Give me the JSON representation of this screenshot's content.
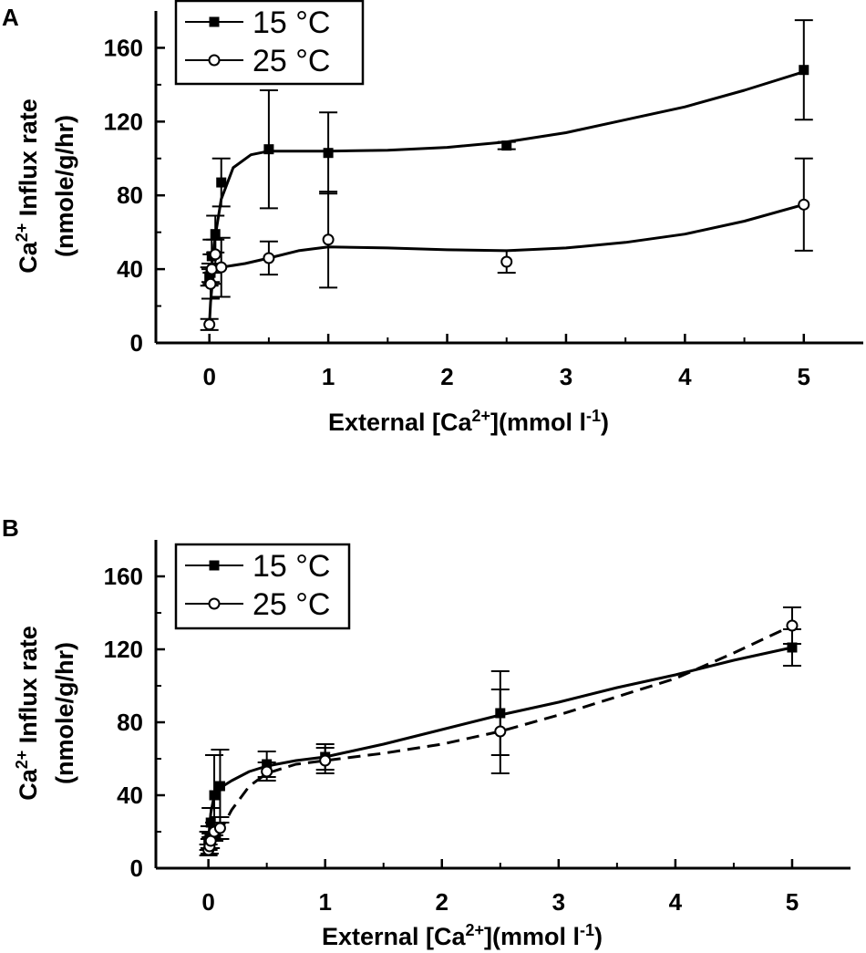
{
  "chart_data": [
    {
      "panel_label": "A",
      "type": "line",
      "xlabel_main": "External [Ca",
      "xlabel_sup": "2+",
      "xlabel_mid": "](mmol l",
      "xlabel_sup2": "-1",
      "xlabel_end": ")",
      "ylabel_line1_main": "Ca",
      "ylabel_line1_sup": "2+",
      "ylabel_line1_end": " Influx rate",
      "ylabel_line2": "(nmole/g/hr)",
      "xlim": [
        -0.45,
        5.5
      ],
      "ylim": [
        0,
        180
      ],
      "xticks": [
        0,
        1,
        2,
        3,
        4,
        5
      ],
      "yticks": [
        0,
        40,
        80,
        120,
        160
      ],
      "legend": [
        {
          "label": "15 °C",
          "marker": "square-filled"
        },
        {
          "label": "25 °C",
          "marker": "circle-open"
        }
      ],
      "series": [
        {
          "name": "15 °C",
          "marker": "square-filled",
          "line": "solid",
          "points": [
            {
              "x": 0.0,
              "y": 36,
              "err": 5
            },
            {
              "x": 0.01,
              "y": 38,
              "err": 5
            },
            {
              "x": 0.02,
              "y": 47,
              "err": 9
            },
            {
              "x": 0.05,
              "y": 59,
              "err": 10
            },
            {
              "x": 0.1,
              "y": 87,
              "err": 13
            },
            {
              "x": 0.5,
              "y": 105,
              "err": 32
            },
            {
              "x": 1.0,
              "y": 103,
              "err": 22
            },
            {
              "x": 2.5,
              "y": 107,
              "err": 2
            },
            {
              "x": 5.0,
              "y": 148,
              "err": 27
            }
          ],
          "curve": [
            [
              0.0,
              36
            ],
            [
              0.02,
              42
            ],
            [
              0.05,
              58
            ],
            [
              0.1,
              78
            ],
            [
              0.2,
              95
            ],
            [
              0.35,
              102
            ],
            [
              0.5,
              104
            ],
            [
              0.75,
              104
            ],
            [
              1.0,
              104
            ],
            [
              1.5,
              104.5
            ],
            [
              2.0,
              106
            ],
            [
              2.5,
              109
            ],
            [
              3.0,
              114
            ],
            [
              3.5,
              121
            ],
            [
              4.0,
              128
            ],
            [
              4.5,
              137
            ],
            [
              5.0,
              147
            ]
          ]
        },
        {
          "name": "25 °C",
          "marker": "circle-open",
          "line": "solid",
          "points": [
            {
              "x": 0.0,
              "y": 10,
              "err": 3
            },
            {
              "x": 0.01,
              "y": 32,
              "err": 8
            },
            {
              "x": 0.02,
              "y": 40,
              "err": 8
            },
            {
              "x": 0.05,
              "y": 48,
              "err": 8
            },
            {
              "x": 0.1,
              "y": 41,
              "err": 16
            },
            {
              "x": 0.5,
              "y": 46,
              "err": 9
            },
            {
              "x": 1.0,
              "y": 56,
              "err": 26
            },
            {
              "x": 2.5,
              "y": 44,
              "err": 6
            },
            {
              "x": 5.0,
              "y": 75,
              "err": 25
            }
          ],
          "curve": [
            [
              0.0,
              10
            ],
            [
              0.01,
              22
            ],
            [
              0.03,
              36
            ],
            [
              0.06,
              40
            ],
            [
              0.1,
              41
            ],
            [
              0.3,
              43
            ],
            [
              0.5,
              46
            ],
            [
              0.75,
              50
            ],
            [
              1.0,
              52
            ],
            [
              1.5,
              51.5
            ],
            [
              2.0,
              50.5
            ],
            [
              2.5,
              50
            ],
            [
              3.0,
              51.5
            ],
            [
              3.5,
              54.5
            ],
            [
              4.0,
              59
            ],
            [
              4.5,
              66
            ],
            [
              5.0,
              75
            ]
          ]
        }
      ]
    },
    {
      "panel_label": "B",
      "type": "line",
      "xlabel_main": "External [Ca",
      "xlabel_sup": "2+",
      "xlabel_mid": "](mmol l",
      "xlabel_sup2": "-1",
      "xlabel_end": ")",
      "ylabel_line1_main": "Ca",
      "ylabel_line1_sup": "2+",
      "ylabel_line1_end": " Influx rate",
      "ylabel_line2": "(nmole/g/hr)",
      "xlim": [
        -0.45,
        5.5
      ],
      "ylim": [
        0,
        180
      ],
      "xticks": [
        0,
        1,
        2,
        3,
        4,
        5
      ],
      "yticks": [
        0,
        40,
        80,
        120,
        160
      ],
      "legend": [
        {
          "label": "15 °C",
          "marker": "square-filled"
        },
        {
          "label": "25 °C",
          "marker": "circle-open"
        }
      ],
      "series": [
        {
          "name": "15 °C",
          "marker": "square-filled",
          "line": "solid",
          "points": [
            {
              "x": 0.0,
              "y": 15,
              "err": 5
            },
            {
              "x": 0.01,
              "y": 17,
              "err": 6
            },
            {
              "x": 0.02,
              "y": 25,
              "err": 8
            },
            {
              "x": 0.05,
              "y": 40,
              "err": 22
            },
            {
              "x": 0.1,
              "y": 45,
              "err": 20
            },
            {
              "x": 0.5,
              "y": 57,
              "err": 7
            },
            {
              "x": 1.0,
              "y": 61,
              "err": 7
            },
            {
              "x": 2.5,
              "y": 85,
              "err": 23
            },
            {
              "x": 5.0,
              "y": 121,
              "err": 10
            }
          ],
          "curve": [
            [
              0.0,
              15
            ],
            [
              0.02,
              30
            ],
            [
              0.05,
              40
            ],
            [
              0.1,
              44
            ],
            [
              0.2,
              48
            ],
            [
              0.35,
              53
            ],
            [
              0.5,
              56
            ],
            [
              0.75,
              59
            ],
            [
              1.0,
              61
            ],
            [
              1.5,
              68
            ],
            [
              2.0,
              76
            ],
            [
              2.5,
              84
            ],
            [
              3.0,
              91
            ],
            [
              3.5,
              99
            ],
            [
              4.0,
              106
            ],
            [
              4.5,
              114
            ],
            [
              5.0,
              121
            ]
          ]
        },
        {
          "name": "25 °C",
          "marker": "circle-open",
          "line": "dashed",
          "points": [
            {
              "x": 0.0,
              "y": 10,
              "err": 3
            },
            {
              "x": 0.01,
              "y": 12,
              "err": 4
            },
            {
              "x": 0.02,
              "y": 15,
              "err": 4
            },
            {
              "x": 0.05,
              "y": 20,
              "err": 5
            },
            {
              "x": 0.1,
              "y": 22,
              "err": 6
            },
            {
              "x": 0.5,
              "y": 53,
              "err": 5
            },
            {
              "x": 1.0,
              "y": 59,
              "err": 7
            },
            {
              "x": 2.5,
              "y": 75,
              "err": 23
            },
            {
              "x": 5.0,
              "y": 133,
              "err": 10
            }
          ],
          "curve": [
            [
              0.0,
              10
            ],
            [
              0.05,
              14
            ],
            [
              0.1,
              20
            ],
            [
              0.2,
              32
            ],
            [
              0.35,
              45
            ],
            [
              0.5,
              52
            ],
            [
              0.75,
              57
            ],
            [
              1.0,
              59
            ],
            [
              1.5,
              63
            ],
            [
              2.0,
              68
            ],
            [
              2.5,
              75
            ],
            [
              3.0,
              84
            ],
            [
              3.5,
              94
            ],
            [
              4.0,
              104
            ],
            [
              4.5,
              118
            ],
            [
              5.0,
              133
            ]
          ]
        }
      ]
    }
  ]
}
